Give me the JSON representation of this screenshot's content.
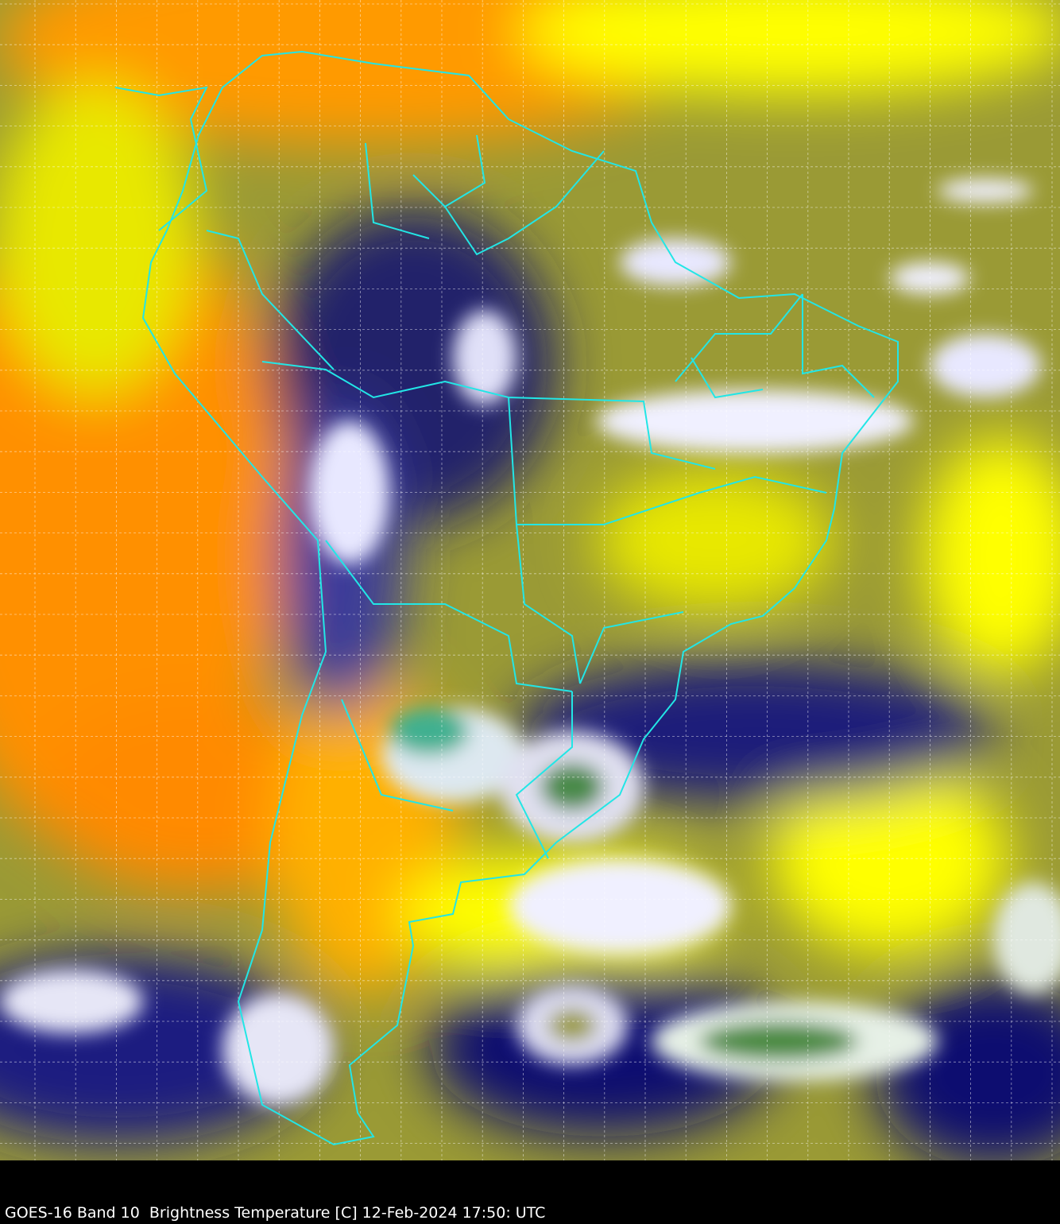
{
  "caption": "GOES-16 Band 10  Brightness Temperature [C] 12-Feb-2024 17:50: UTC",
  "map": {
    "region": "South America",
    "overlay": "country and state borders",
    "grid": true,
    "colors": {
      "border": "#22e6e6",
      "grid": "#ffffff",
      "warm": "#ff8c00",
      "mid": "#ffff00",
      "olive": "#8a8a30",
      "cold": "#0a0a78",
      "coldest": "#ffffff",
      "cloud_core": "#3a8a3a"
    }
  }
}
